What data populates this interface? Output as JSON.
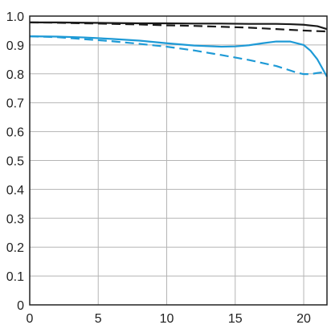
{
  "chart_data": {
    "type": "line",
    "xlim": [
      0,
      21.7
    ],
    "ylim": [
      0,
      1.0
    ],
    "x_ticks": [
      0,
      5,
      10,
      15,
      20
    ],
    "y_ticks": [
      0,
      0.1,
      0.2,
      0.3,
      0.4,
      0.5,
      0.6,
      0.7,
      0.8,
      0.9,
      1.0
    ],
    "x_tick_labels": [
      "0",
      "5",
      "10",
      "15",
      "20"
    ],
    "y_tick_labels": [
      "0",
      "0.1",
      "0.2",
      "0.3",
      "0.4",
      "0.5",
      "0.6",
      "0.7",
      "0.8",
      "0.9",
      "1.0"
    ],
    "grid": true,
    "legend": "none",
    "series": [
      {
        "color": "#1a1a1a",
        "dash": "solid",
        "x": [
          0,
          2,
          4,
          6,
          8,
          10,
          12,
          14,
          16,
          18,
          19,
          20,
          21,
          21.7
        ],
        "y": [
          0.978,
          0.978,
          0.977,
          0.976,
          0.975,
          0.975,
          0.974,
          0.974,
          0.973,
          0.973,
          0.972,
          0.97,
          0.965,
          0.955
        ]
      },
      {
        "color": "#1a1a1a",
        "dash": "dashed",
        "x": [
          0,
          2,
          4,
          6,
          8,
          10,
          12,
          14,
          16,
          18,
          20,
          21,
          21.7
        ],
        "y": [
          0.978,
          0.977,
          0.975,
          0.973,
          0.971,
          0.968,
          0.966,
          0.963,
          0.96,
          0.955,
          0.95,
          0.948,
          0.947
        ]
      },
      {
        "color": "#1e9ad6",
        "dash": "solid",
        "x": [
          0,
          2,
          4,
          6,
          8,
          10,
          12,
          14,
          15,
          16,
          17,
          18,
          19,
          20,
          20.5,
          21,
          21.7
        ],
        "y": [
          0.93,
          0.929,
          0.926,
          0.921,
          0.915,
          0.906,
          0.898,
          0.894,
          0.895,
          0.899,
          0.906,
          0.912,
          0.912,
          0.9,
          0.88,
          0.85,
          0.79
        ]
      },
      {
        "color": "#1e9ad6",
        "dash": "dashed",
        "x": [
          0,
          2,
          4,
          6,
          8,
          10,
          12,
          14,
          16,
          18,
          19,
          19.5,
          20,
          20.5,
          21,
          21.7
        ],
        "y": [
          0.93,
          0.927,
          0.92,
          0.913,
          0.904,
          0.894,
          0.881,
          0.865,
          0.848,
          0.827,
          0.812,
          0.804,
          0.799,
          0.799,
          0.803,
          0.807
        ]
      }
    ]
  }
}
